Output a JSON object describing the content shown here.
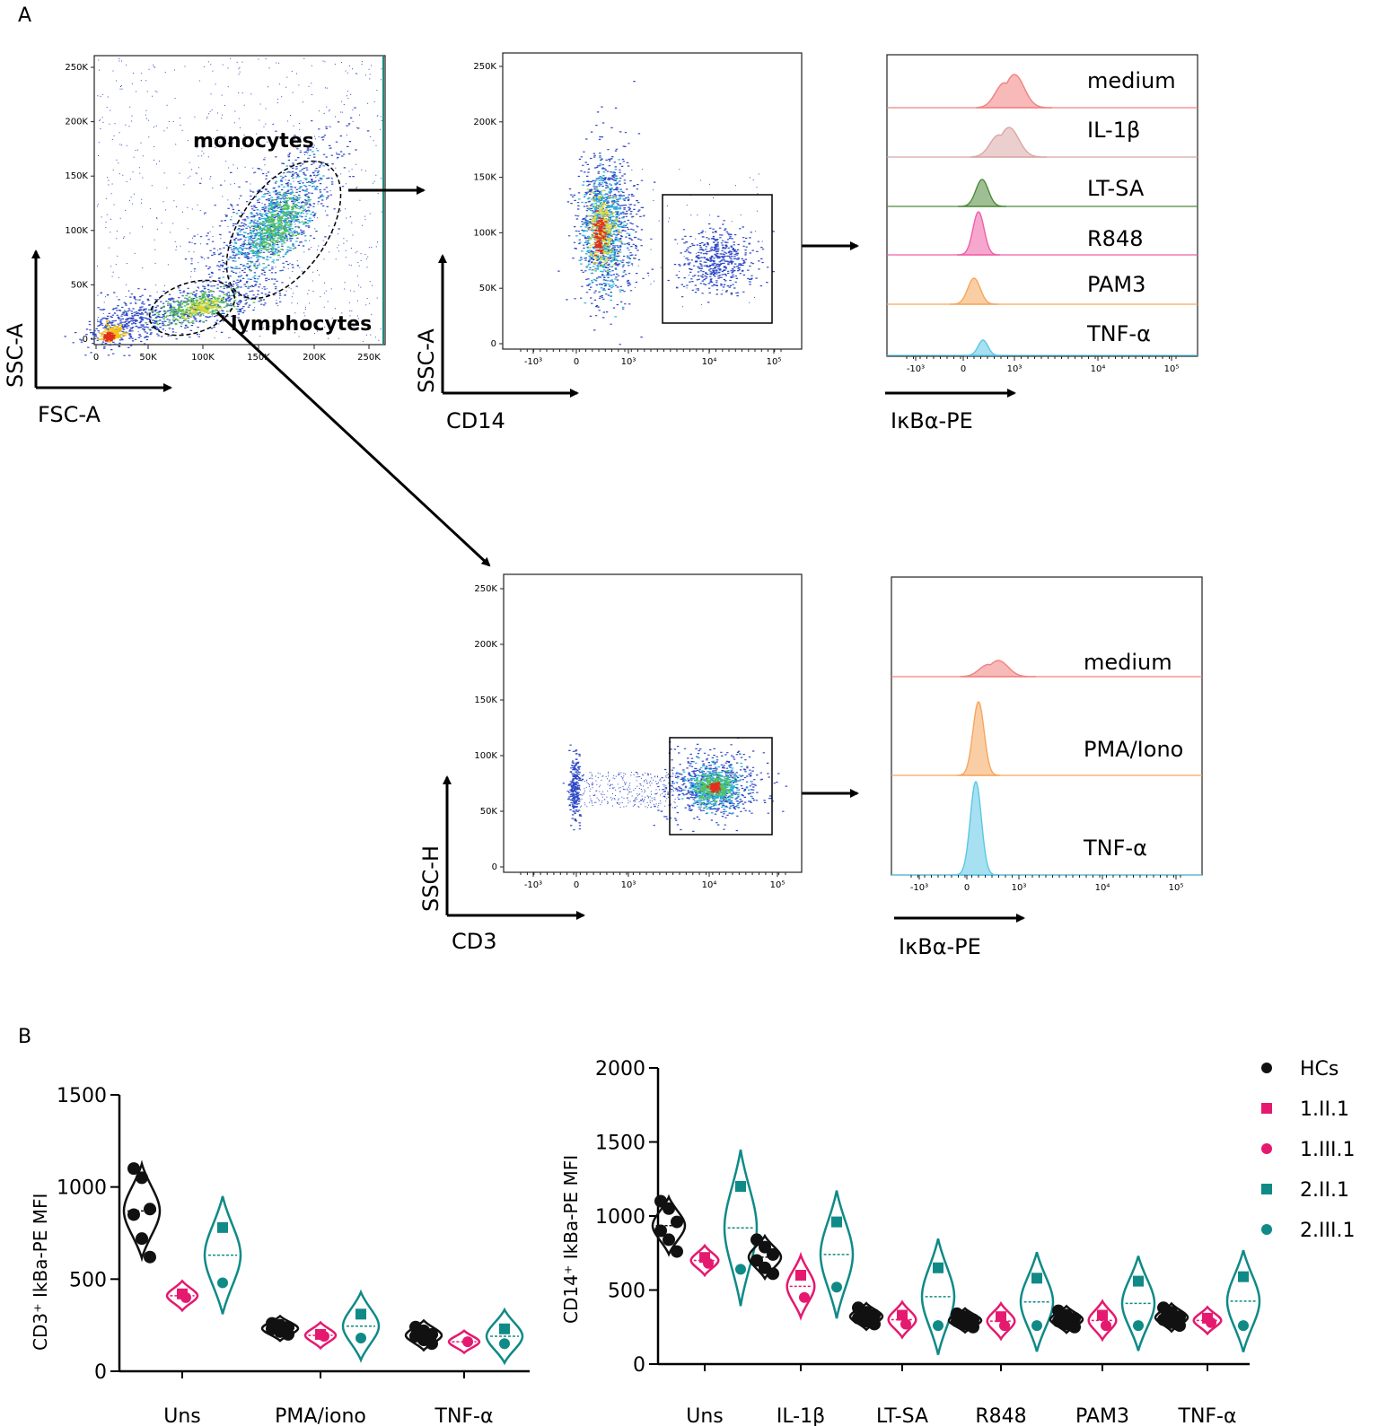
{
  "panel_labels": [
    "A",
    "B"
  ],
  "colors": {
    "black": "#111111",
    "magenta": "#e5196f",
    "teal": "#0f8a87",
    "scatter_blue": "#2f49c6",
    "hist_medium": "#f28080",
    "hist_il1b": "#d8a8a6",
    "hist_ltsa": "#4f8a3a",
    "hist_r848": "#ee5fa6",
    "hist_pam3": "#f6a55b",
    "hist_tnf": "#5cc7e6"
  },
  "fsc_plot": {
    "y_ticks": [
      "0",
      "50K",
      "100K",
      "150K",
      "200K",
      "250K"
    ],
    "x_ticks": [
      "0",
      "50K",
      "100K",
      "150K",
      "200K",
      "250K"
    ],
    "x_label": "FSC-A",
    "y_label": "SSC-A",
    "gate_monocytes": "monocytes",
    "gate_lymphocytes": "lymphocytes"
  },
  "cd14_plot": {
    "y_ticks": [
      "0",
      "50K",
      "100K",
      "150K",
      "200K",
      "250K"
    ],
    "x_ticks": [
      "-10³",
      "0",
      "10³",
      "10⁴",
      "10⁵"
    ],
    "x_label": "CD14",
    "y_label": "SSC-A"
  },
  "cd3_plot": {
    "y_ticks": [
      "0",
      "50K",
      "100K",
      "150K",
      "200K",
      "250K"
    ],
    "x_ticks": [
      "-10³",
      "0",
      "10³",
      "10⁴",
      "10⁵"
    ],
    "x_label": "CD3",
    "y_label": "SSC-H"
  },
  "hist_mono": {
    "labels": [
      "medium",
      "IL-1β",
      "LT-SA",
      "R848",
      "PAM3",
      "TNF-α"
    ],
    "x_ticks": [
      "-10³",
      "0",
      "10³",
      "10⁴",
      "10⁵"
    ],
    "x_label": "IκBα-PE"
  },
  "hist_lymph": {
    "labels": [
      "medium",
      "PMA/Iono",
      "TNF-α"
    ],
    "x_ticks": [
      "-10³",
      "0",
      "10³",
      "10⁴",
      "10⁵"
    ],
    "x_label": "IκBα-PE"
  },
  "chart_data": [
    {
      "type": "violin",
      "title": "",
      "ylabel": "CD3⁺ IkBa-PE MFI",
      "xlabel": "",
      "ylim": [
        0,
        1500
      ],
      "y_ticks": [
        0,
        500,
        1000,
        1500
      ],
      "categories": [
        "Uns",
        "PMA/iono",
        "TNF-α"
      ],
      "series": [
        {
          "name": "HCs",
          "values": [
            [
              1100,
              1050,
              880,
              850,
              720,
              620
            ],
            [
              260,
              250,
              240,
              230,
              215,
              200
            ],
            [
              240,
              220,
              200,
              190,
              170,
              150
            ]
          ]
        },
        {
          "name": "1.II.1",
          "values": [
            420,
            200,
            null
          ]
        },
        {
          "name": "1.III.1",
          "values": [
            400,
            190,
            160
          ]
        },
        {
          "name": "2.II.1",
          "values": [
            780,
            310,
            230
          ]
        },
        {
          "name": "2.III.1",
          "values": [
            480,
            180,
            150
          ]
        }
      ]
    },
    {
      "type": "violin",
      "title": "",
      "ylabel": "CD14⁺ IkBa-PE MFI",
      "xlabel": "",
      "ylim": [
        0,
        2000
      ],
      "y_ticks": [
        0,
        500,
        1000,
        1500,
        2000
      ],
      "categories": [
        "Uns",
        "IL-1β",
        "LT-SA",
        "R848",
        "PAM3",
        "TNF-α"
      ],
      "series": [
        {
          "name": "HCs",
          "values": [
            [
              1100,
              1050,
              960,
              900,
              840,
              760
            ],
            [
              840,
              790,
              740,
              700,
              650,
              610
            ],
            [
              380,
              350,
              330,
              310,
              290,
              270
            ],
            [
              340,
              320,
              300,
              290,
              270,
              250
            ],
            [
              360,
              330,
              310,
              290,
              270,
              250
            ],
            [
              380,
              350,
              320,
              300,
              280,
              260
            ]
          ]
        },
        {
          "name": "1.II.1",
          "values": [
            720,
            600,
            330,
            320,
            330,
            310
          ]
        },
        {
          "name": "1.III.1",
          "values": [
            680,
            450,
            270,
            260,
            260,
            280
          ]
        },
        {
          "name": "2.II.1",
          "values": [
            1200,
            960,
            650,
            580,
            560,
            590
          ]
        },
        {
          "name": "2.III.1",
          "values": [
            640,
            520,
            260,
            260,
            260,
            260
          ]
        }
      ]
    }
  ],
  "legend": [
    {
      "name": "HCs",
      "marker": "circle",
      "color": "#111111"
    },
    {
      "name": "1.II.1",
      "marker": "square",
      "color": "#e5196f"
    },
    {
      "name": "1.III.1",
      "marker": "circle",
      "color": "#e5196f"
    },
    {
      "name": "2.II.1",
      "marker": "square",
      "color": "#0f8a87"
    },
    {
      "name": "2.III.1",
      "marker": "circle",
      "color": "#0f8a87"
    }
  ]
}
